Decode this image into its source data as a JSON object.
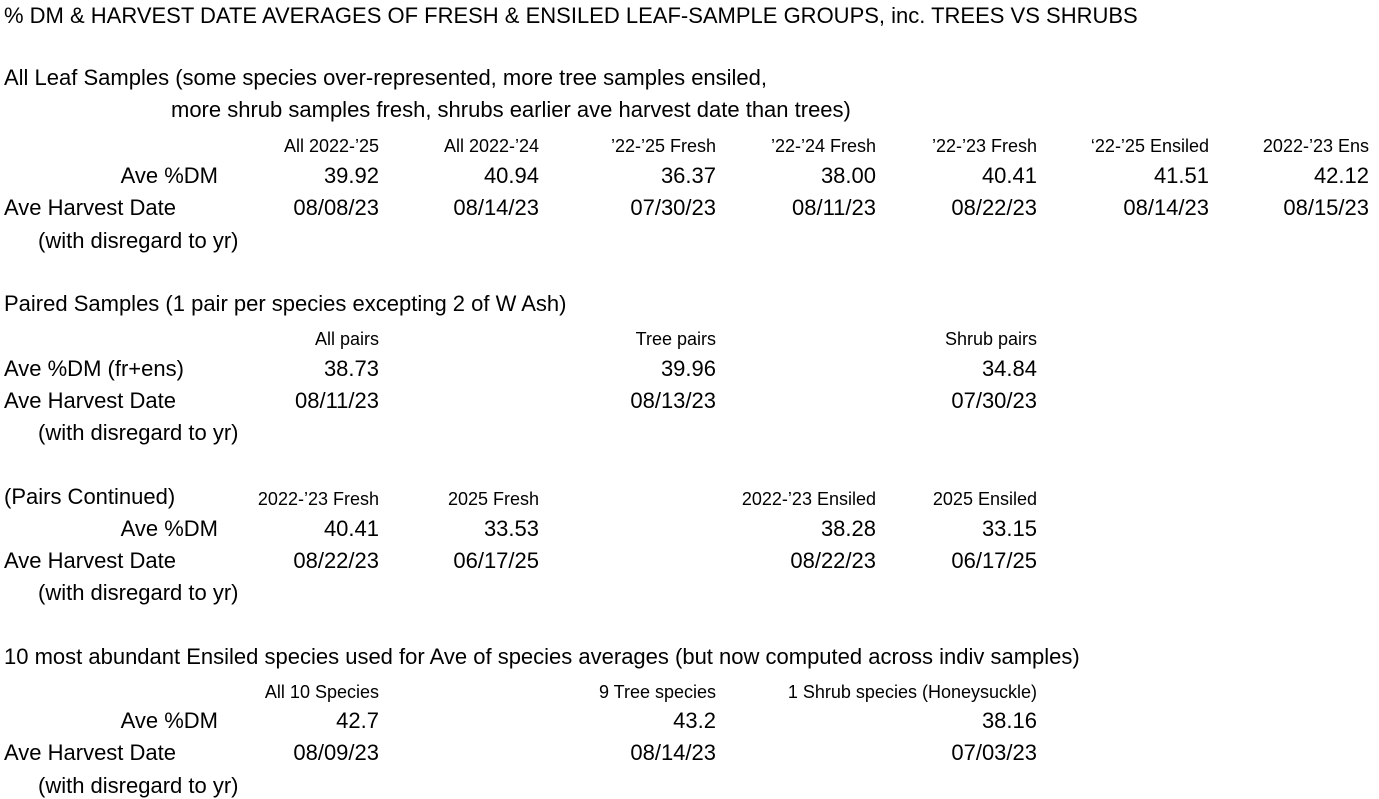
{
  "title": "% DM & HARVEST DATE AVERAGES OF FRESH & ENSILED LEAF-SAMPLE GROUPS, inc. TREES VS SHRUBS",
  "s1": {
    "heading1": "All Leaf Samples (some species over-represented, more tree samples ensiled,",
    "heading2": "more shrub samples fresh, shrubs earlier ave harvest date than trees)",
    "cols": [
      "All 2022-’25",
      "All 2022-’24",
      "’22-’25 Fresh",
      "’22-’24 Fresh",
      "’22-’23 Fresh",
      "‘22-’25 Ensiled",
      "2022-’23 Ens"
    ],
    "dm_label": "Ave %DM",
    "dm": [
      "39.92",
      "40.94",
      "36.37",
      "38.00",
      "40.41",
      "41.51",
      "42.12"
    ],
    "hd_label": "Ave Harvest Date",
    "hd": [
      "08/08/23",
      "08/14/23",
      "07/30/23",
      "08/11/23",
      "08/22/23",
      "08/14/23",
      "08/15/23"
    ],
    "note": "(with disregard to yr)"
  },
  "s2": {
    "heading": "Paired Samples (1 pair per species excepting 2 of W Ash)",
    "cols": [
      "All pairs",
      "Tree pairs",
      "Shrub pairs"
    ],
    "dm_label": "Ave %DM (fr+ens)",
    "dm": [
      "38.73",
      "39.96",
      "34.84"
    ],
    "hd_label": "Ave Harvest Date",
    "hd": [
      "08/11/23",
      "08/13/23",
      "07/30/23"
    ],
    "note": "(with disregard to yr)"
  },
  "s3": {
    "heading": "(Pairs Continued)",
    "cols": [
      "2022-’23 Fresh",
      "2025 Fresh",
      "2022-’23 Ensiled",
      "2025 Ensiled"
    ],
    "dm_label": "Ave %DM",
    "dm": [
      "40.41",
      "33.53",
      "38.28",
      "33.15"
    ],
    "hd_label": "Ave Harvest Date",
    "hd": [
      "08/22/23",
      "06/17/25",
      "08/22/23",
      "06/17/25"
    ],
    "note": "(with disregard to yr)"
  },
  "s4": {
    "heading": "10 most abundant Ensiled species used for Ave of species averages (but now computed across indiv samples)",
    "cols": [
      "All 10 Species",
      "9 Tree species",
      "1 Shrub species (Honeysuckle)"
    ],
    "dm_label": "Ave %DM",
    "dm": [
      "42.7",
      "43.2",
      "38.16"
    ],
    "hd_label": "Ave Harvest Date",
    "hd": [
      "08/09/23",
      "08/14/23",
      "07/03/23"
    ],
    "note": "(with disregard to yr)"
  }
}
